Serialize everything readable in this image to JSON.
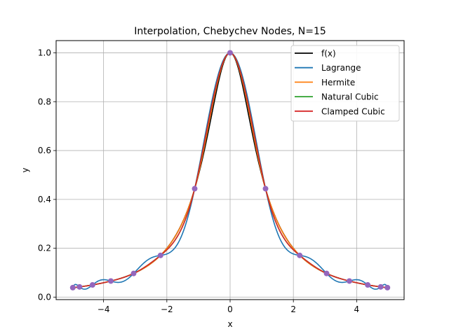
{
  "chart_data": {
    "type": "line",
    "title": "Interpolation, Chebychev Nodes, N=15",
    "xlabel": "x",
    "ylabel": "y",
    "xlim": [
      -5.5,
      5.5
    ],
    "ylim": [
      -0.01,
      1.05
    ],
    "grid": true,
    "legend_position": "top-right",
    "x_ticks": [
      -4,
      -2,
      0,
      2,
      4
    ],
    "x_tick_labels": [
      "−4",
      "−2",
      "0",
      "2",
      "4"
    ],
    "y_ticks": [
      0.0,
      0.2,
      0.4,
      0.6,
      0.8,
      1.0
    ],
    "y_tick_labels": [
      "0.0",
      "0.2",
      "0.4",
      "0.6",
      "0.8",
      "1.0"
    ],
    "series": [
      {
        "name": "f(x)",
        "color": "#000000"
      },
      {
        "name": "Lagrange",
        "color": "#1f77b4"
      },
      {
        "name": "Hermite",
        "color": "#ff7f0e"
      },
      {
        "name": "Natural Cubic",
        "color": "#2ca02c"
      },
      {
        "name": "Clamped Cubic",
        "color": "#d62728"
      }
    ],
    "nodes": {
      "color": "#9467bd",
      "x": [
        -4.973,
        -4.76,
        -4.35,
        -3.77,
        -3.05,
        -2.2,
        -1.12,
        0.0,
        1.12,
        2.2,
        3.05,
        3.77,
        4.35,
        4.76,
        4.973
      ],
      "y": [
        0.039,
        0.042,
        0.05,
        0.066,
        0.097,
        0.171,
        0.444,
        1.0,
        0.444,
        0.171,
        0.097,
        0.066,
        0.05,
        0.042,
        0.039
      ]
    }
  }
}
